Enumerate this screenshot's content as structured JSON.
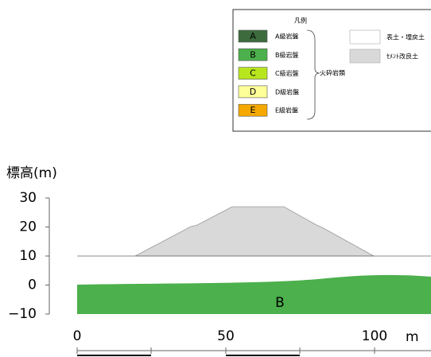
{
  "legend": {
    "title": "凡例",
    "rock_classes": [
      {
        "code": "A",
        "label": "A級岩盤",
        "color": "#3d6b3d"
      },
      {
        "code": "B",
        "label": "B級岩盤",
        "color": "#4cb04c"
      },
      {
        "code": "C",
        "label": "C級岩盤",
        "color": "#b8e61e"
      },
      {
        "code": "D",
        "label": "D級岩盤",
        "color": "#ffff99"
      },
      {
        "code": "E",
        "label": "E級岩盤",
        "color": "#f5a800"
      }
    ],
    "group_label": "火砕岩類",
    "soils": [
      {
        "label": "表土・埋戻土",
        "color": "#ffffff"
      },
      {
        "label": "ｾﾒﾝﾄ改良土",
        "color": "#d9d9d9"
      }
    ]
  },
  "section": {
    "y_label": "標高(m)",
    "y_ticks": [
      "30",
      "20",
      "10",
      "0",
      "−10"
    ],
    "x_ticks": [
      "0",
      "50",
      "100"
    ],
    "x_unit": "m",
    "region_label": "B"
  }
}
